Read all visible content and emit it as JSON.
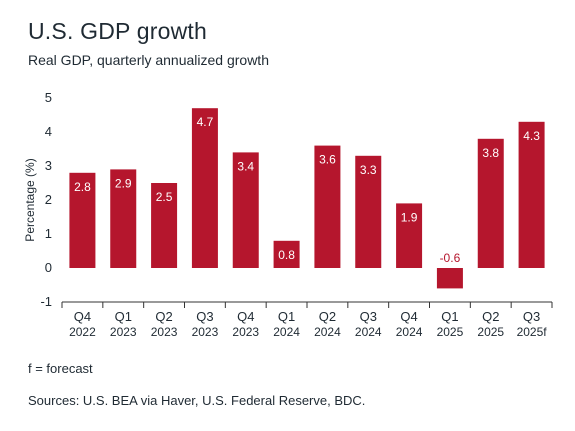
{
  "title": "U.S. GDP growth",
  "subtitle": "Real GDP, quarterly annualized growth",
  "note": "f = forecast",
  "source": "Sources: U.S. BEA via Haver, U.S. Federal Reserve, BDC.",
  "colors": {
    "bar": "#b5162d",
    "axis": "#333333",
    "label_inside": "#ffffff",
    "label_negative": "#b5162d"
  },
  "chart_data": {
    "type": "bar",
    "ylabel": "Percentage (%)",
    "ylim": [
      -1,
      5
    ],
    "yticks": [
      -1,
      0,
      1,
      2,
      3,
      4,
      5
    ],
    "grid": false,
    "categories": [
      {
        "q": "Q4",
        "y": "2022"
      },
      {
        "q": "Q1",
        "y": "2023"
      },
      {
        "q": "Q2",
        "y": "2023"
      },
      {
        "q": "Q3",
        "y": "2023"
      },
      {
        "q": "Q4",
        "y": "2023"
      },
      {
        "q": "Q1",
        "y": "2024"
      },
      {
        "q": "Q2",
        "y": "2024"
      },
      {
        "q": "Q3",
        "y": "2024"
      },
      {
        "q": "Q4",
        "y": "2024"
      },
      {
        "q": "Q1",
        "y": "2025"
      },
      {
        "q": "Q2",
        "y": "2025"
      },
      {
        "q": "Q3",
        "y": "2025f"
      }
    ],
    "values": [
      2.8,
      2.9,
      2.5,
      4.7,
      3.4,
      0.8,
      3.6,
      3.3,
      1.9,
      -0.6,
      3.8,
      4.3
    ],
    "labels": [
      "2.8",
      "2.9",
      "2.5",
      "4.7",
      "3.4",
      "0.8",
      "3.6",
      "3.3",
      "1.9",
      "-0.6",
      "3.8",
      "4.3"
    ]
  }
}
